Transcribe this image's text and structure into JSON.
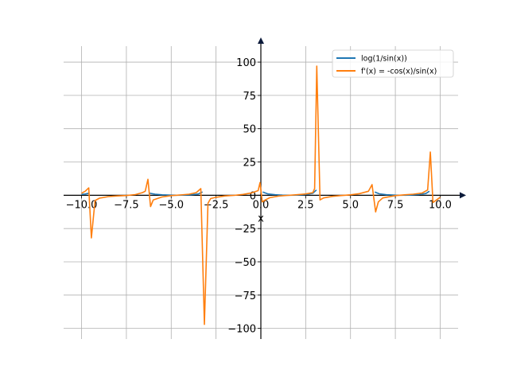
{
  "chart_data": {
    "type": "line",
    "title": "",
    "xlabel": "x",
    "ylabel": "",
    "xlim": [
      -11,
      11
    ],
    "ylim": [
      -108,
      112
    ],
    "grid": true,
    "legend_position": "top-right",
    "x_ticks": [
      -10,
      -7.5,
      -5,
      -2.5,
      0,
      2.5,
      5,
      7.5,
      10
    ],
    "x_tick_labels": [
      "−10.0",
      "−7.5",
      "−5.0",
      "−2.5",
      "0.0",
      "2.5",
      "5.0",
      "7.5",
      "10.0"
    ],
    "y_ticks": [
      -100,
      -75,
      -50,
      -25,
      0,
      25,
      50,
      75,
      100
    ],
    "y_tick_labels": [
      "−100",
      "−75",
      "−50",
      "−25",
      "0",
      "25",
      "50",
      "75",
      "100"
    ],
    "series": [
      {
        "name": "log(1/sin(x))",
        "color": "#1f77b4",
        "segments": [
          [
            [
              -10.0,
              0.6
            ],
            [
              -9.8,
              0.9
            ],
            [
              -9.6,
              1.5
            ]
          ],
          [
            [
              -6.2,
              1.5
            ],
            [
              -5.9,
              0.8
            ],
            [
              -5.5,
              0.3
            ],
            [
              -5.0,
              0.1
            ],
            [
              -4.7,
              0.0
            ],
            [
              -4.4,
              0.1
            ],
            [
              -3.9,
              0.3
            ],
            [
              -3.5,
              0.9
            ],
            [
              -3.25,
              2.5
            ]
          ],
          [
            [
              0.1,
              2.5
            ],
            [
              0.4,
              1.0
            ],
            [
              0.8,
              0.4
            ],
            [
              1.2,
              0.1
            ],
            [
              1.57,
              0.0
            ],
            [
              2.0,
              0.1
            ],
            [
              2.5,
              0.5
            ],
            [
              2.9,
              1.5
            ],
            [
              3.1,
              4.0
            ]
          ],
          [
            [
              6.35,
              2.5
            ],
            [
              6.6,
              1.1
            ],
            [
              7.0,
              0.4
            ],
            [
              7.5,
              0.1
            ],
            [
              7.85,
              0.0
            ],
            [
              8.3,
              0.1
            ],
            [
              8.8,
              0.5
            ],
            [
              9.2,
              1.3
            ],
            [
              9.4,
              3.0
            ]
          ]
        ]
      },
      {
        "name": "f'(x) = -cos(x)/sin(x)",
        "color": "#ff7f0e",
        "points": [
          [
            -10.0,
            1.5
          ],
          [
            -9.8,
            3.0
          ],
          [
            -9.6,
            5.5
          ],
          [
            -9.45,
            -32.0
          ],
          [
            -9.25,
            -4.0
          ],
          [
            -9.0,
            -2.2
          ],
          [
            -8.5,
            -1.0
          ],
          [
            -8.0,
            -0.5
          ],
          [
            -7.5,
            -0.2
          ],
          [
            -7.0,
            0.5
          ],
          [
            -6.6,
            2.0
          ],
          [
            -6.45,
            3.0
          ],
          [
            -6.3,
            12.0
          ],
          [
            -6.15,
            -8.5
          ],
          [
            -6.0,
            -3.5
          ],
          [
            -5.5,
            -1.2
          ],
          [
            -5.0,
            -0.3
          ],
          [
            -4.5,
            0.2
          ],
          [
            -4.0,
            0.8
          ],
          [
            -3.6,
            2.0
          ],
          [
            -3.35,
            5.0
          ],
          [
            -3.15,
            -97.0
          ],
          [
            -2.95,
            -6.0
          ],
          [
            -2.8,
            -2.5
          ],
          [
            -2.5,
            -1.5
          ],
          [
            -2.0,
            -0.5
          ],
          [
            -1.5,
            -0.1
          ],
          [
            -1.0,
            0.6
          ],
          [
            -0.5,
            1.8
          ],
          [
            -0.15,
            3.5
          ],
          [
            -0.05,
            9.5
          ],
          [
            0.08,
            -5.0
          ],
          [
            0.25,
            -3.5
          ],
          [
            0.5,
            -1.8
          ],
          [
            1.0,
            -0.6
          ],
          [
            1.5,
            -0.1
          ],
          [
            2.0,
            0.4
          ],
          [
            2.5,
            1.0
          ],
          [
            2.9,
            2.0
          ],
          [
            3.0,
            5.0
          ],
          [
            3.12,
            97.0
          ],
          [
            3.3,
            -3.5
          ],
          [
            3.5,
            -2.0
          ],
          [
            4.0,
            -0.8
          ],
          [
            4.5,
            -0.2
          ],
          [
            5.0,
            0.3
          ],
          [
            5.5,
            1.2
          ],
          [
            6.0,
            3.0
          ],
          [
            6.2,
            8.0
          ],
          [
            6.4,
            -12.5
          ],
          [
            6.55,
            -5.0
          ],
          [
            6.8,
            -2.0
          ],
          [
            7.5,
            -0.3
          ],
          [
            8.0,
            0.3
          ],
          [
            8.5,
            0.8
          ],
          [
            9.0,
            1.7
          ],
          [
            9.3,
            4.0
          ],
          [
            9.45,
            32.5
          ],
          [
            9.6,
            -5.5
          ],
          [
            9.8,
            -3.5
          ],
          [
            10.0,
            -1.5
          ]
        ]
      }
    ]
  }
}
